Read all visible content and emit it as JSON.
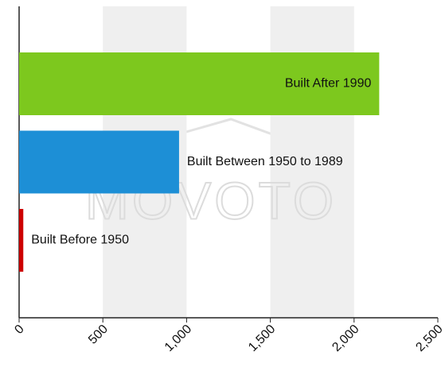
{
  "chart_data": {
    "type": "hbar",
    "categories": [
      "Built After 1990",
      "Built Between 1950 to 1989",
      "Built Before 1950"
    ],
    "values": [
      2150,
      955,
      25
    ],
    "colors": [
      "#7dc81e",
      "#1d8fd6",
      "#cc0000"
    ],
    "xlim": [
      0,
      2500
    ],
    "xticks": [
      0,
      500,
      {
        "value": 1000,
        "label": "1,000"
      },
      {
        "value": 1500,
        "label": "1,500"
      },
      {
        "value": 2000,
        "label": "2,000"
      },
      {
        "value": 2500,
        "label": "2,500"
      }
    ],
    "alternating_bands": true,
    "watermark": "MOVOTO"
  }
}
